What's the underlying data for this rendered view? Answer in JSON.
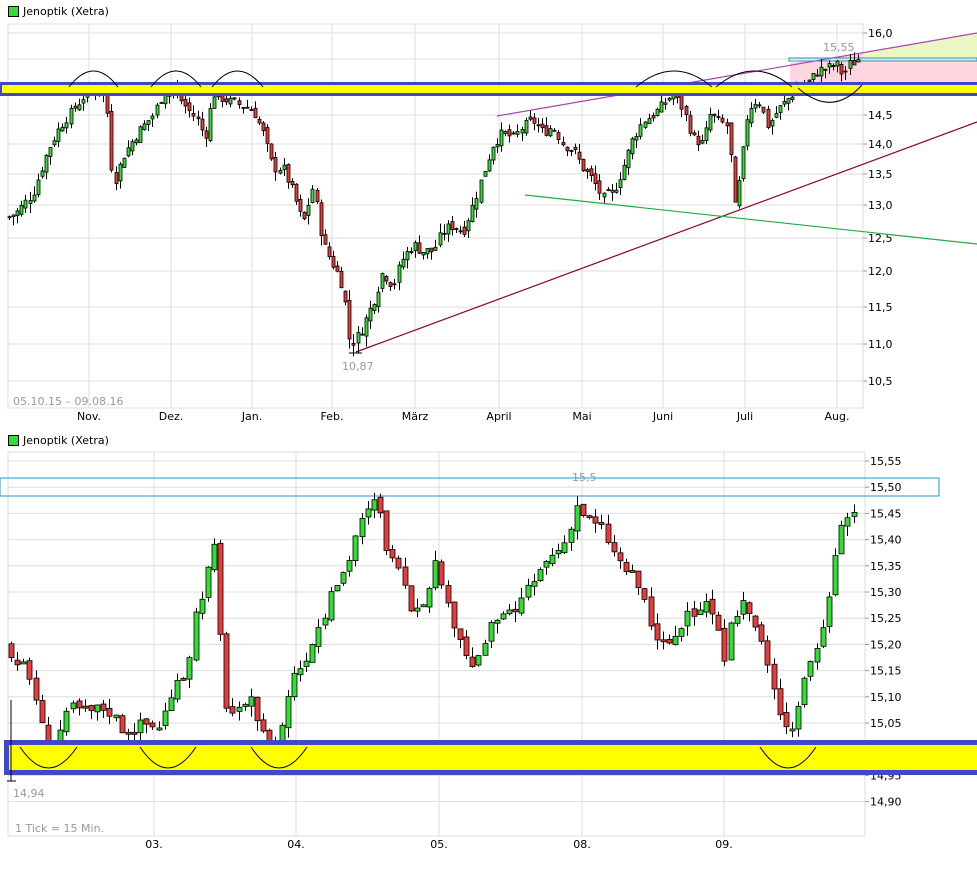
{
  "top_chart": {
    "legend": "Jenoptik (Xetra)",
    "date_range": "05.10.15 – 09.08.16",
    "low_label": "10,87",
    "high_label": "15,55"
  },
  "bottom_chart": {
    "legend": "Jenoptik (Xetra)",
    "tick_note": "1 Tick = 15 Min.",
    "low_label": "14,94",
    "high_label": "15,5"
  },
  "colors": {
    "up": "#33dd33",
    "down": "#e83c3c",
    "grid": "#dddddd",
    "zone_fill": "#ffff00",
    "zone_border": "#4048c8",
    "resistance_box": "#2299cc",
    "channel_upper": "#aa44aa",
    "trend_support": "#880022",
    "trend_green": "#22aa44",
    "fill_pink": "#ffd6e0",
    "fill_lime": "#eaf7c4"
  },
  "chart_data": [
    {
      "type": "candlestick",
      "title": "Jenoptik (Xetra)",
      "subtitle": "05.10.15 – 09.08.16",
      "xlabel": "",
      "ylabel": "",
      "x_ticks": [
        "Nov.",
        "Dez.",
        "Jan.",
        "Feb.",
        "März",
        "April",
        "Mai",
        "Juni",
        "Juli",
        "Aug."
      ],
      "y_ticks": [
        "16,0",
        "15,5",
        "15,0",
        "14,5",
        "14,0",
        "13,5",
        "13,0",
        "12,5",
        "12,0",
        "11,5",
        "11,0",
        "10,5"
      ],
      "ylim": [
        10.2,
        16.1
      ],
      "grid": true,
      "annotations": [
        "10,87 (low, Feb.)",
        "15,55 (high, Aug.)",
        "Support/resistance zone at ~15,0",
        "Ascending support from 10,87 low",
        "Upper channel line (purple)",
        "Descending green trendline",
        "Horizontal resistance box at ~15,5"
      ],
      "approx_closes": {
        "Oct": 12.9,
        "Nov": 14.9,
        "Dez": 14.8,
        "Jan": 14.6,
        "Feb": 11.0,
        "März": 12.2,
        "April": 14.3,
        "Mai": 14.0,
        "Juni": 14.7,
        "Juli": 14.4,
        "Aug": 15.45
      }
    },
    {
      "type": "candlestick",
      "title": "Jenoptik (Xetra)",
      "subtitle": "1 Tick = 15 Min.",
      "x_ticks": [
        "03.",
        "04.",
        "05.",
        "08.",
        "09."
      ],
      "y_ticks": [
        "15,55",
        "15,50",
        "15,45",
        "15,40",
        "15,35",
        "15,30",
        "15,25",
        "15,20",
        "15,15",
        "15,10",
        "15,05",
        "15,00",
        "14,95",
        "14,90"
      ],
      "ylim": [
        14.86,
        15.57
      ],
      "grid": true,
      "annotations": [
        "14,94 (low)",
        "15,5 (high, 08.)",
        "Support zone at ~15,00",
        "Resistance box at ~15,50"
      ]
    }
  ]
}
